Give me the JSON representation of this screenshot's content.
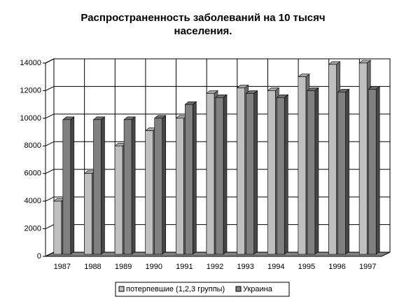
{
  "chart_data": {
    "type": "bar3d",
    "title": "Распространенность заболеваний на 10 тысяч населения.",
    "categories": [
      "1987",
      "1988",
      "1989",
      "1990",
      "1991",
      "1992",
      "1993",
      "1994",
      "1995",
      "1996",
      "1997"
    ],
    "series": [
      {
        "name": "потерпевшие (1,2,3 группы)",
        "color": "#c0c0c0",
        "values": [
          4000,
          6000,
          8000,
          9100,
          10000,
          11800,
          12200,
          12000,
          13000,
          13900,
          14000
        ]
      },
      {
        "name": "Украина",
        "color": "#808080",
        "values": [
          9900,
          9900,
          9900,
          10000,
          11000,
          11500,
          11800,
          11500,
          12000,
          11900,
          12100
        ]
      }
    ],
    "ylim": [
      0,
      14000
    ],
    "yticks": [
      0,
      2000,
      4000,
      6000,
      8000,
      10000,
      12000,
      14000
    ],
    "grid": true
  }
}
